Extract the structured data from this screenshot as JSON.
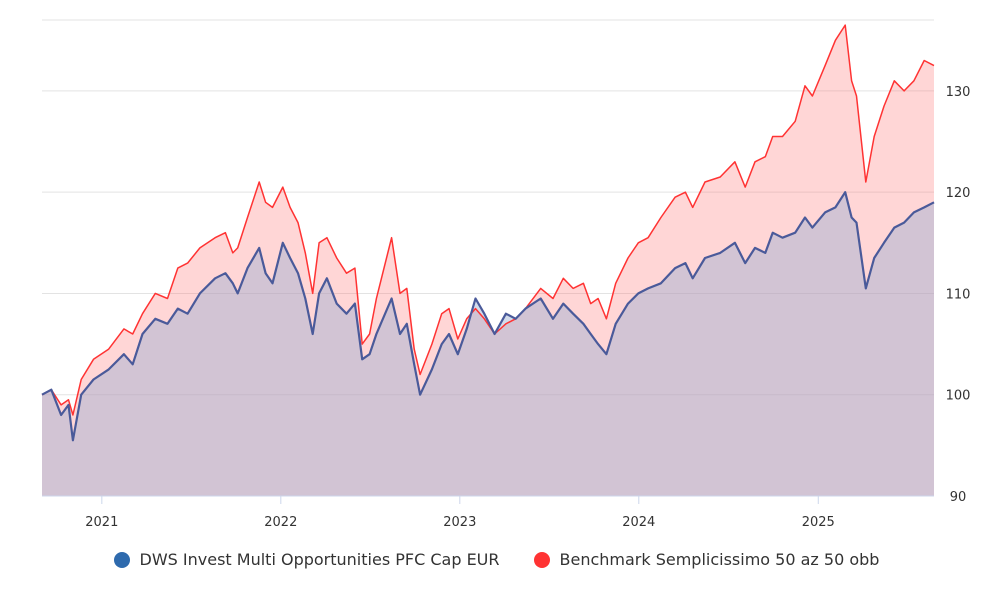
{
  "chart_data": {
    "type": "area",
    "x_range": [
      "2020-09-01",
      "2025-08-25"
    ],
    "ylim": [
      90,
      137
    ],
    "y_ticks": [
      90,
      100,
      110,
      120,
      130
    ],
    "x_ticks": [
      {
        "label": "2021",
        "date": "2021-01-01"
      },
      {
        "label": "2022",
        "date": "2022-01-01"
      },
      {
        "label": "2023",
        "date": "2023-01-01"
      },
      {
        "label": "2024",
        "date": "2024-01-01"
      },
      {
        "label": "2025",
        "date": "2025-01-01"
      }
    ],
    "grid": true,
    "legend_position": "bottom",
    "series": [
      {
        "name": "DWS Invest Multi Opportunities PFC Cap EUR",
        "color": "#2e6aad",
        "points": [
          [
            "2020-09-01",
            100
          ],
          [
            "2020-09-20",
            100.5
          ],
          [
            "2020-10-10",
            98
          ],
          [
            "2020-10-25",
            99
          ],
          [
            "2020-11-03",
            95.5
          ],
          [
            "2020-11-20",
            100
          ],
          [
            "2020-12-15",
            101.5
          ],
          [
            "2021-01-15",
            102.5
          ],
          [
            "2021-02-15",
            104
          ],
          [
            "2021-03-05",
            103
          ],
          [
            "2021-03-25",
            106
          ],
          [
            "2021-04-20",
            107.5
          ],
          [
            "2021-05-15",
            107
          ],
          [
            "2021-06-05",
            108.5
          ],
          [
            "2021-06-25",
            108
          ],
          [
            "2021-07-20",
            110
          ],
          [
            "2021-08-20",
            111.5
          ],
          [
            "2021-09-10",
            112
          ],
          [
            "2021-09-25",
            111
          ],
          [
            "2021-10-05",
            110
          ],
          [
            "2021-10-25",
            112.5
          ],
          [
            "2021-11-18",
            114.5
          ],
          [
            "2021-12-01",
            112
          ],
          [
            "2021-12-15",
            111
          ],
          [
            "2022-01-05",
            115
          ],
          [
            "2022-01-20",
            113.5
          ],
          [
            "2022-02-05",
            112
          ],
          [
            "2022-02-20",
            109.5
          ],
          [
            "2022-03-07",
            106
          ],
          [
            "2022-03-20",
            110
          ],
          [
            "2022-04-05",
            111.5
          ],
          [
            "2022-04-25",
            109
          ],
          [
            "2022-05-15",
            108
          ],
          [
            "2022-06-01",
            109
          ],
          [
            "2022-06-16",
            103.5
          ],
          [
            "2022-07-01",
            104
          ],
          [
            "2022-07-15",
            106
          ],
          [
            "2022-08-15",
            109.5
          ],
          [
            "2022-09-01",
            106
          ],
          [
            "2022-09-15",
            107
          ],
          [
            "2022-09-30",
            103
          ],
          [
            "2022-10-12",
            100
          ],
          [
            "2022-11-05",
            102.5
          ],
          [
            "2022-11-25",
            105
          ],
          [
            "2022-12-10",
            106
          ],
          [
            "2022-12-28",
            104
          ],
          [
            "2023-01-15",
            106.5
          ],
          [
            "2023-02-02",
            109.5
          ],
          [
            "2023-02-20",
            108
          ],
          [
            "2023-03-13",
            106
          ],
          [
            "2023-04-05",
            108
          ],
          [
            "2023-04-25",
            107.5
          ],
          [
            "2023-05-15",
            108.5
          ],
          [
            "2023-06-15",
            109.5
          ],
          [
            "2023-07-10",
            107.5
          ],
          [
            "2023-07-31",
            109
          ],
          [
            "2023-08-20",
            108
          ],
          [
            "2023-09-10",
            107
          ],
          [
            "2023-09-25",
            106
          ],
          [
            "2023-10-10",
            105
          ],
          [
            "2023-10-27",
            104
          ],
          [
            "2023-11-15",
            107
          ],
          [
            "2023-12-10",
            109
          ],
          [
            "2023-12-31",
            110
          ],
          [
            "2024-01-20",
            110.5
          ],
          [
            "2024-02-15",
            111
          ],
          [
            "2024-03-15",
            112.5
          ],
          [
            "2024-04-05",
            113
          ],
          [
            "2024-04-20",
            111.5
          ],
          [
            "2024-05-15",
            113.5
          ],
          [
            "2024-06-15",
            114
          ],
          [
            "2024-07-15",
            115
          ],
          [
            "2024-08-05",
            113
          ],
          [
            "2024-08-25",
            114.5
          ],
          [
            "2024-09-15",
            114
          ],
          [
            "2024-09-30",
            116
          ],
          [
            "2024-10-20",
            115.5
          ],
          [
            "2024-11-15",
            116
          ],
          [
            "2024-12-05",
            117.5
          ],
          [
            "2024-12-20",
            116.5
          ],
          [
            "2025-01-15",
            118
          ],
          [
            "2025-02-05",
            118.5
          ],
          [
            "2025-02-25",
            120
          ],
          [
            "2025-03-10",
            117.5
          ],
          [
            "2025-03-20",
            117
          ],
          [
            "2025-04-08",
            110.5
          ],
          [
            "2025-04-25",
            113.5
          ],
          [
            "2025-05-15",
            115
          ],
          [
            "2025-06-05",
            116.5
          ],
          [
            "2025-06-25",
            117
          ],
          [
            "2025-07-15",
            118
          ],
          [
            "2025-08-05",
            118.5
          ],
          [
            "2025-08-25",
            119
          ]
        ]
      },
      {
        "name": "Benchmark Semplicissimo 50 az 50 obb",
        "color": "#ff3333",
        "points": [
          [
            "2020-09-01",
            100
          ],
          [
            "2020-09-20",
            100.5
          ],
          [
            "2020-10-10",
            99
          ],
          [
            "2020-10-25",
            99.5
          ],
          [
            "2020-11-03",
            98
          ],
          [
            "2020-11-20",
            101.5
          ],
          [
            "2020-12-15",
            103.5
          ],
          [
            "2021-01-15",
            104.5
          ],
          [
            "2021-02-15",
            106.5
          ],
          [
            "2021-03-05",
            106
          ],
          [
            "2021-03-25",
            108
          ],
          [
            "2021-04-20",
            110
          ],
          [
            "2021-05-15",
            109.5
          ],
          [
            "2021-06-05",
            112.5
          ],
          [
            "2021-06-25",
            113
          ],
          [
            "2021-07-20",
            114.5
          ],
          [
            "2021-08-20",
            115.5
          ],
          [
            "2021-09-10",
            116
          ],
          [
            "2021-09-25",
            114
          ],
          [
            "2021-10-05",
            114.5
          ],
          [
            "2021-10-25",
            117.5
          ],
          [
            "2021-11-18",
            121
          ],
          [
            "2021-12-01",
            119
          ],
          [
            "2021-12-15",
            118.5
          ],
          [
            "2022-01-05",
            120.5
          ],
          [
            "2022-01-20",
            118.5
          ],
          [
            "2022-02-05",
            117
          ],
          [
            "2022-02-20",
            114
          ],
          [
            "2022-03-07",
            110
          ],
          [
            "2022-03-20",
            115
          ],
          [
            "2022-04-05",
            115.5
          ],
          [
            "2022-04-25",
            113.5
          ],
          [
            "2022-05-15",
            112
          ],
          [
            "2022-06-01",
            112.5
          ],
          [
            "2022-06-16",
            105
          ],
          [
            "2022-07-01",
            106
          ],
          [
            "2022-07-15",
            109.5
          ],
          [
            "2022-08-15",
            115.5
          ],
          [
            "2022-09-01",
            110
          ],
          [
            "2022-09-15",
            110.5
          ],
          [
            "2022-09-30",
            104.5
          ],
          [
            "2022-10-12",
            102
          ],
          [
            "2022-11-05",
            105
          ],
          [
            "2022-11-25",
            108
          ],
          [
            "2022-12-10",
            108.5
          ],
          [
            "2022-12-28",
            105.5
          ],
          [
            "2023-01-15",
            107.5
          ],
          [
            "2023-02-02",
            108.5
          ],
          [
            "2023-02-20",
            107.5
          ],
          [
            "2023-03-13",
            106
          ],
          [
            "2023-04-05",
            107
          ],
          [
            "2023-04-25",
            107.5
          ],
          [
            "2023-05-15",
            108.5
          ],
          [
            "2023-06-15",
            110.5
          ],
          [
            "2023-07-10",
            109.5
          ],
          [
            "2023-07-31",
            111.5
          ],
          [
            "2023-08-20",
            110.5
          ],
          [
            "2023-09-10",
            111
          ],
          [
            "2023-09-25",
            109
          ],
          [
            "2023-10-10",
            109.5
          ],
          [
            "2023-10-27",
            107.5
          ],
          [
            "2023-11-15",
            111
          ],
          [
            "2023-12-10",
            113.5
          ],
          [
            "2023-12-31",
            115
          ],
          [
            "2024-01-20",
            115.5
          ],
          [
            "2024-02-15",
            117.5
          ],
          [
            "2024-03-15",
            119.5
          ],
          [
            "2024-04-05",
            120
          ],
          [
            "2024-04-20",
            118.5
          ],
          [
            "2024-05-15",
            121
          ],
          [
            "2024-06-15",
            121.5
          ],
          [
            "2024-07-15",
            123
          ],
          [
            "2024-08-05",
            120.5
          ],
          [
            "2024-08-25",
            123
          ],
          [
            "2024-09-15",
            123.5
          ],
          [
            "2024-09-30",
            125.5
          ],
          [
            "2024-10-20",
            125.5
          ],
          [
            "2024-11-15",
            127
          ],
          [
            "2024-12-05",
            130.5
          ],
          [
            "2024-12-20",
            129.5
          ],
          [
            "2025-01-15",
            132.5
          ],
          [
            "2025-02-05",
            135
          ],
          [
            "2025-02-25",
            136.5
          ],
          [
            "2025-03-10",
            131
          ],
          [
            "2025-03-20",
            129.5
          ],
          [
            "2025-04-08",
            121
          ],
          [
            "2025-04-25",
            125.5
          ],
          [
            "2025-05-15",
            128.5
          ],
          [
            "2025-06-05",
            131
          ],
          [
            "2025-06-25",
            130
          ],
          [
            "2025-07-15",
            131
          ],
          [
            "2025-08-05",
            133
          ],
          [
            "2025-08-25",
            132.5
          ]
        ]
      }
    ]
  }
}
